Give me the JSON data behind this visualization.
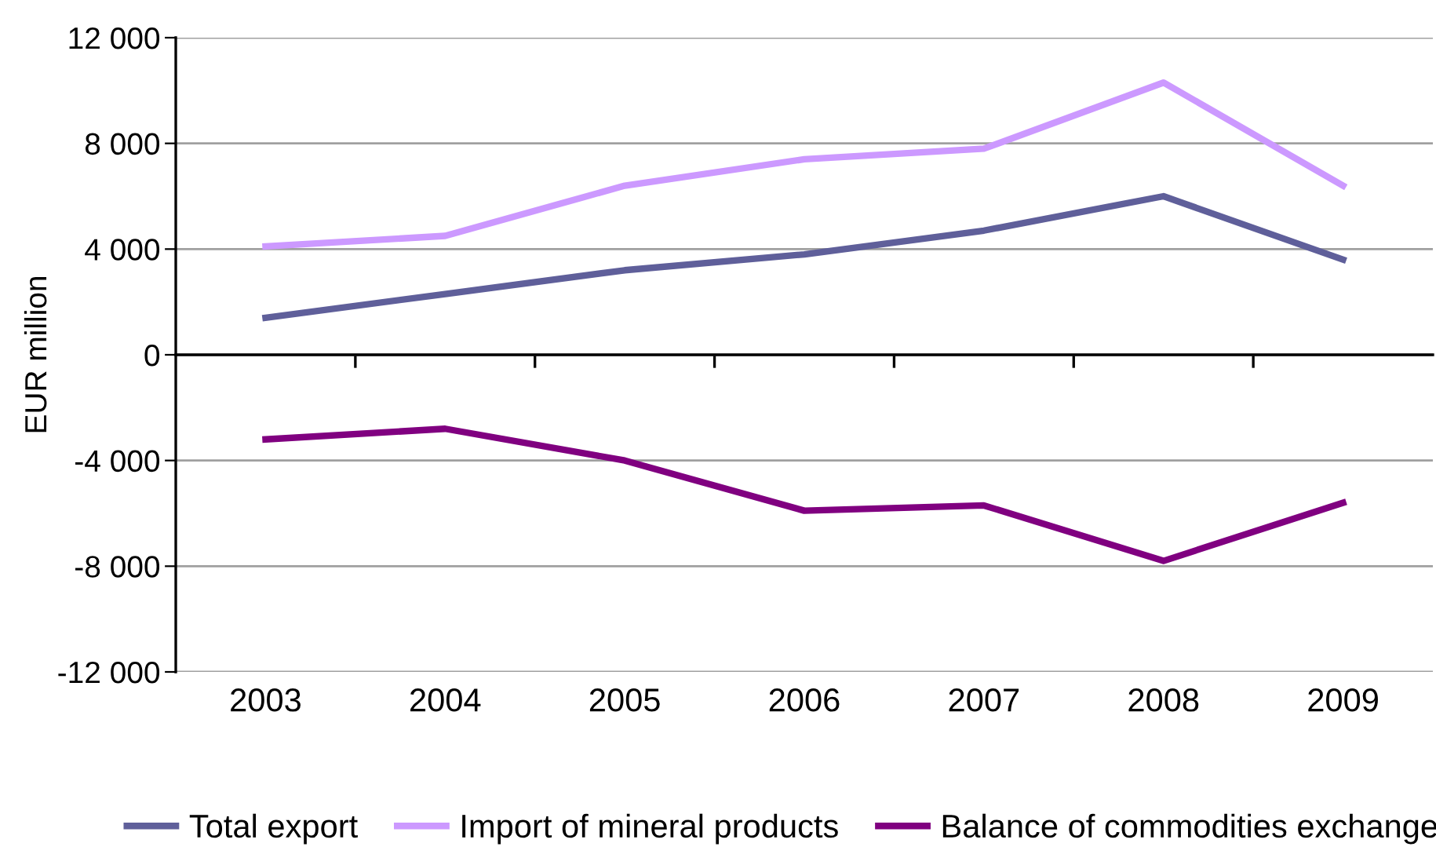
{
  "chart_data": {
    "type": "line",
    "ylabel": "EUR million",
    "categories": [
      "2003",
      "2004",
      "2005",
      "2006",
      "2007",
      "2008",
      "2009"
    ],
    "series": [
      {
        "name": "Total export",
        "color": "#5f5f9a",
        "values": [
          1400,
          2300,
          3200,
          3800,
          4700,
          6000,
          3600
        ]
      },
      {
        "name": "Import of mineral products",
        "color": "#cc99ff",
        "values": [
          4100,
          4500,
          6400,
          7400,
          7800,
          10300,
          6400
        ]
      },
      {
        "name": "Balance of commodities exchange",
        "color": "#800080",
        "values": [
          -3200,
          -2800,
          -4000,
          -5900,
          -5700,
          -7800,
          -5600
        ]
      }
    ],
    "ylim": [
      -12000,
      12000
    ],
    "yticks": [
      {
        "value": -12000,
        "label": "-12 000"
      },
      {
        "value": -8000,
        "label": "-8 000"
      },
      {
        "value": -4000,
        "label": "-4 000"
      },
      0,
      {
        "value": 4000,
        "label": "4 000"
      },
      {
        "value": 8000,
        "label": "8 000"
      },
      {
        "value": 12000,
        "label": "12 000"
      }
    ],
    "grid": "y",
    "legend": "bottom",
    "marker": "none",
    "line_style": "solid"
  }
}
